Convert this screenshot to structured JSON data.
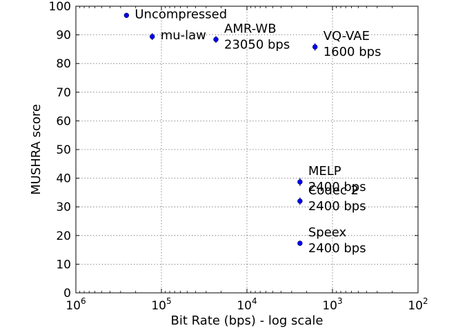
{
  "chart_data": {
    "type": "scatter",
    "xlabel": "Bit Rate (bps) - log scale",
    "ylabel": "MUSHRA score",
    "x_scale": "log",
    "x_reversed": true,
    "xlim": [
      1000000,
      100
    ],
    "ylim": [
      0,
      100
    ],
    "grid": true,
    "marker_color": "#0000ff",
    "x_ticks": [
      {
        "value": 1000000,
        "base": "10",
        "exp": "6"
      },
      {
        "value": 100000,
        "base": "10",
        "exp": "5"
      },
      {
        "value": 10000,
        "base": "10",
        "exp": "4"
      },
      {
        "value": 1000,
        "base": "10",
        "exp": "3"
      },
      {
        "value": 100,
        "base": "10",
        "exp": "2"
      }
    ],
    "y_ticks": [
      {
        "value": 0,
        "label": "0"
      },
      {
        "value": 10,
        "label": "10"
      },
      {
        "value": 20,
        "label": "20"
      },
      {
        "value": 30,
        "label": "30"
      },
      {
        "value": 40,
        "label": "40"
      },
      {
        "value": 50,
        "label": "50"
      },
      {
        "value": 60,
        "label": "60"
      },
      {
        "value": 70,
        "label": "70"
      },
      {
        "value": 80,
        "label": "80"
      },
      {
        "value": 90,
        "label": "90"
      },
      {
        "value": 100,
        "label": "100"
      }
    ],
    "points": [
      {
        "key": "uncompressed",
        "x": 256000,
        "y": 96.8,
        "err": 0.6,
        "label_lines": [
          "Uncompressed"
        ]
      },
      {
        "key": "mu-law",
        "x": 128000,
        "y": 89.4,
        "err": 1.2,
        "label_lines": [
          "mu-law"
        ]
      },
      {
        "key": "amr-wb",
        "x": 23050,
        "y": 88.4,
        "err": 1.2,
        "label_lines": [
          "AMR-WB",
          "23050 bps"
        ]
      },
      {
        "key": "vq-vae",
        "x": 1600,
        "y": 85.8,
        "err": 1.3,
        "label_lines": [
          "VQ-VAE",
          "1600 bps"
        ]
      },
      {
        "key": "melp",
        "x": 2400,
        "y": 38.7,
        "err": 1.4,
        "label_lines": [
          "MELP",
          "2400 bps"
        ]
      },
      {
        "key": "codec-2",
        "x": 2400,
        "y": 32.0,
        "err": 1.3,
        "label_lines": [
          "Codec 2",
          "2400 bps"
        ]
      },
      {
        "key": "speex",
        "x": 2400,
        "y": 17.3,
        "err": 0.9,
        "label_lines": [
          "Speex",
          "2400 bps"
        ]
      }
    ]
  }
}
